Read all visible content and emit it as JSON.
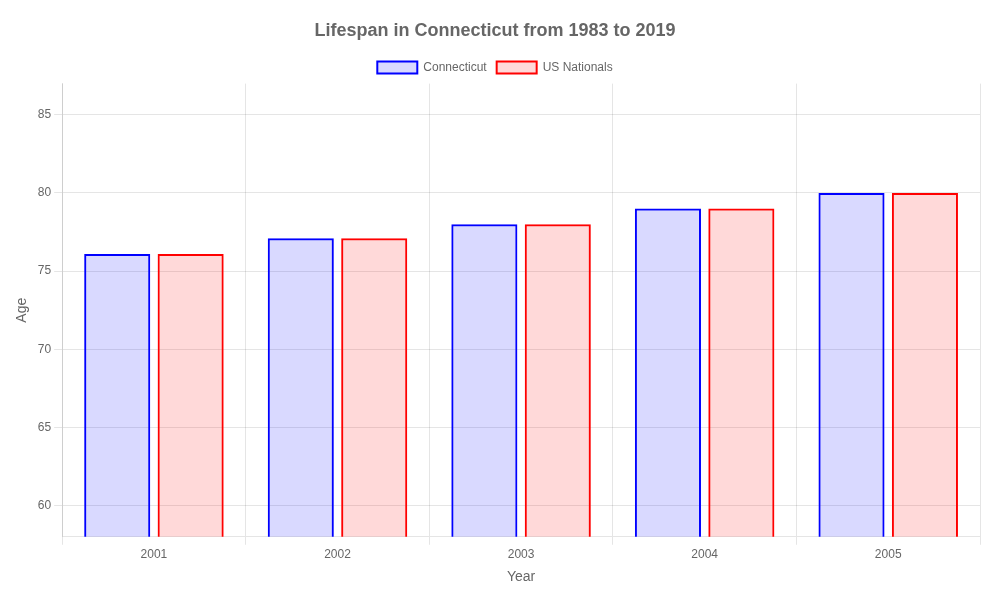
{
  "chart_data": {
    "type": "bar",
    "title": "Lifespan in Connecticut from 1983 to 2019",
    "x_label": "Year",
    "y_label": "Age",
    "categories": [
      "2001",
      "2002",
      "2003",
      "2004",
      "2005"
    ],
    "series": [
      {
        "name": "Connecticut",
        "color": "#0000ff",
        "values": [
          76.1,
          77.1,
          78.0,
          79.0,
          80.0
        ]
      },
      {
        "name": "US Nationals",
        "color": "#ff0000",
        "values": [
          76.1,
          77.1,
          78.0,
          79.0,
          80.0
        ]
      }
    ],
    "ylim": [
      58,
      87
    ],
    "yticks": [
      60,
      65,
      70,
      75,
      80,
      85
    ],
    "grid": true,
    "legend": "top"
  }
}
